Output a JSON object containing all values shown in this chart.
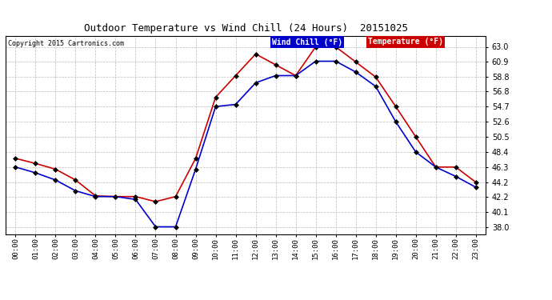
{
  "title": "Outdoor Temperature vs Wind Chill (24 Hours)  20151025",
  "copyright": "Copyright 2015 Cartronics.com",
  "x_labels": [
    "00:00",
    "01:00",
    "02:00",
    "03:00",
    "04:00",
    "05:00",
    "06:00",
    "07:00",
    "08:00",
    "09:00",
    "10:00",
    "11:00",
    "12:00",
    "13:00",
    "14:00",
    "15:00",
    "16:00",
    "17:00",
    "18:00",
    "19:00",
    "20:00",
    "21:00",
    "22:00",
    "23:00"
  ],
  "temperature": [
    47.5,
    46.8,
    46.0,
    44.5,
    42.3,
    42.2,
    42.2,
    41.5,
    42.2,
    47.5,
    56.0,
    59.0,
    62.0,
    60.5,
    59.0,
    63.0,
    63.0,
    60.9,
    58.8,
    54.7,
    50.5,
    46.3,
    46.3,
    44.2
  ],
  "wind_chill": [
    46.3,
    45.5,
    44.5,
    43.0,
    42.2,
    42.2,
    41.8,
    38.0,
    38.0,
    46.0,
    54.7,
    55.0,
    58.0,
    59.0,
    59.0,
    61.0,
    61.0,
    59.5,
    57.5,
    52.6,
    48.4,
    46.3,
    45.0,
    43.5
  ],
  "ylim": [
    37.0,
    64.5
  ],
  "yticks": [
    38.0,
    40.1,
    42.2,
    44.2,
    46.3,
    48.4,
    50.5,
    52.6,
    54.7,
    56.8,
    58.8,
    60.9,
    63.0
  ],
  "temp_color": "#cc0000",
  "wind_color": "#0000cc",
  "bg_color": "#ffffff",
  "grid_color": "#aaaaaa",
  "legend_wind_bg": "#0000cc",
  "legend_temp_bg": "#cc0000",
  "legend_wind_text": "Wind Chill (°F)",
  "legend_temp_text": "Temperature (°F)"
}
